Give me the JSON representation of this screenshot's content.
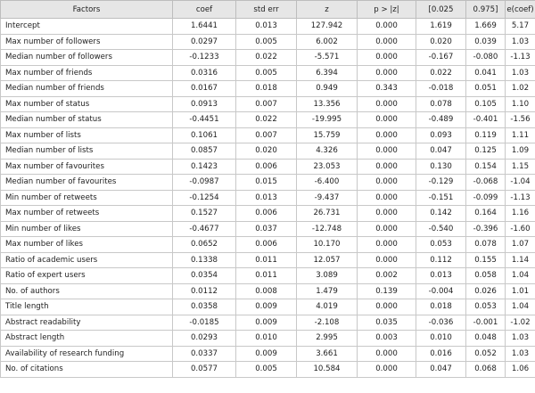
{
  "table": {
    "header": [
      "Factors",
      "coef",
      "std err",
      "z",
      "p > |z|",
      "[0.025",
      "0.975]",
      "e(coef)"
    ],
    "rows": [
      [
        "Intercept",
        "1.6441",
        "0.013",
        "127.942",
        "0.000",
        "1.619",
        "1.669",
        "5.17"
      ],
      [
        "Max number of followers",
        "0.0297",
        "0.005",
        "6.002",
        "0.000",
        "0.020",
        "0.039",
        "1.03"
      ],
      [
        "Median number of followers",
        "-0.1233",
        "0.022",
        "-5.571",
        "0.000",
        "-0.167",
        "-0.080",
        "-1.13"
      ],
      [
        "Max number of friends",
        "0.0316",
        "0.005",
        "6.394",
        "0.000",
        "0.022",
        "0.041",
        "1.03"
      ],
      [
        "Median number of friends",
        "0.0167",
        "0.018",
        "0.949",
        "0.343",
        "-0.018",
        "0.051",
        "1.02"
      ],
      [
        "Max number of status",
        "0.0913",
        "0.007",
        "13.356",
        "0.000",
        "0.078",
        "0.105",
        "1.10"
      ],
      [
        "Median number of status",
        "-0.4451",
        "0.022",
        "-19.995",
        "0.000",
        "-0.489",
        "-0.401",
        "-1.56"
      ],
      [
        "Max number of lists",
        "0.1061",
        "0.007",
        "15.759",
        "0.000",
        "0.093",
        "0.119",
        "1.11"
      ],
      [
        "Median number of lists",
        "0.0857",
        "0.020",
        "4.326",
        "0.000",
        "0.047",
        "0.125",
        "1.09"
      ],
      [
        "Max number of favourites",
        "0.1423",
        "0.006",
        "23.053",
        "0.000",
        "0.130",
        "0.154",
        "1.15"
      ],
      [
        "Median number of favourites",
        "-0.0987",
        "0.015",
        "-6.400",
        "0.000",
        "-0.129",
        "-0.068",
        "-1.04"
      ],
      [
        "Min number of retweets",
        "-0.1254",
        "0.013",
        "-9.437",
        "0.000",
        "-0.151",
        "-0.099",
        "-1.13"
      ],
      [
        "Max number of retweets",
        "0.1527",
        "0.006",
        "26.731",
        "0.000",
        "0.142",
        "0.164",
        "1.16"
      ],
      [
        "Min number of likes",
        "-0.4677",
        "0.037",
        "-12.748",
        "0.000",
        "-0.540",
        "-0.396",
        "-1.60"
      ],
      [
        "Max number of likes",
        "0.0652",
        "0.006",
        "10.170",
        "0.000",
        "0.053",
        "0.078",
        "1.07"
      ],
      [
        "Ratio of academic users",
        "0.1338",
        "0.011",
        "12.057",
        "0.000",
        "0.112",
        "0.155",
        "1.14"
      ],
      [
        "Ratio of expert users",
        "0.0354",
        "0.011",
        "3.089",
        "0.002",
        "0.013",
        "0.058",
        "1.04"
      ],
      [
        "No. of authors",
        "0.0112",
        "0.008",
        "1.479",
        "0.139",
        "-0.004",
        "0.026",
        "1.01"
      ],
      [
        "Title length",
        "0.0358",
        "0.009",
        "4.019",
        "0.000",
        "0.018",
        "0.053",
        "1.04"
      ],
      [
        "Abstract readability",
        "-0.0185",
        "0.009",
        "-2.108",
        "0.035",
        "-0.036",
        "-0.001",
        "-1.02"
      ],
      [
        "Abstract length",
        "0.0293",
        "0.010",
        "2.995",
        "0.003",
        "0.010",
        "0.048",
        "1.03"
      ],
      [
        "Availability of research funding",
        "0.0337",
        "0.009",
        "3.661",
        "0.000",
        "0.016",
        "0.052",
        "1.03"
      ],
      [
        "No. of citations",
        "0.0577",
        "0.005",
        "10.584",
        "0.000",
        "0.047",
        "0.068",
        "1.06"
      ]
    ]
  }
}
